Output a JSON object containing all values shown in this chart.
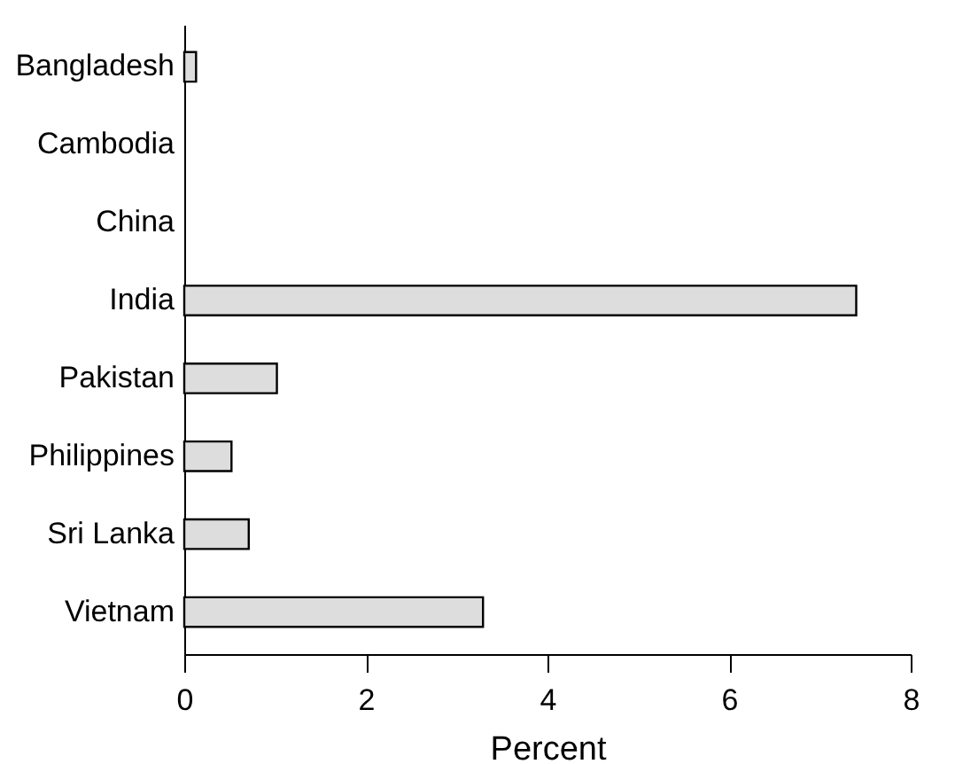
{
  "chart_data": {
    "type": "bar",
    "orientation": "horizontal",
    "xlabel": "Percent",
    "categories": [
      "Bangladesh",
      "Cambodia",
      "China",
      "India",
      "Pakistan",
      "Philippines",
      "Sri Lanka",
      "Vietnam"
    ],
    "values": [
      0.13,
      0,
      0,
      7.4,
      1.02,
      0.52,
      0.71,
      3.29
    ],
    "color": "#dddddd",
    "xlim": [
      0,
      8
    ],
    "xticks": [
      0,
      2,
      4,
      6,
      8
    ],
    "grid": false
  }
}
